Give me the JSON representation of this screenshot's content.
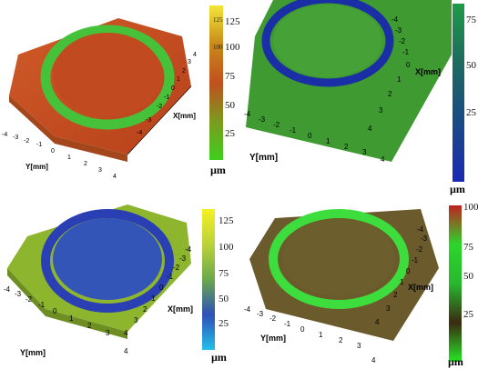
{
  "axes": {
    "x_label": "X[mm]",
    "y_label": "Y[mm]",
    "ticks": [
      "-4",
      "-3",
      "-2",
      "-1",
      "0",
      "1",
      "2",
      "3",
      "4"
    ],
    "tl_x_ticks": [
      "4",
      "3",
      "2",
      "1",
      "0",
      "-1",
      "-2",
      "-3",
      "-4"
    ]
  },
  "panels": [
    {
      "colorbar": {
        "ticks": [
          "125",
          "100",
          "75",
          "50",
          "25"
        ],
        "minor": [
          "125",
          "100"
        ],
        "unit": "µm",
        "colors": [
          "#f2e63a",
          "#c98a1a",
          "#c0501e",
          "#7c9a1f",
          "#3fcf1d"
        ]
      }
    },
    {
      "colorbar": {
        "ticks": [
          "75",
          "50",
          "25"
        ],
        "unit": "µm",
        "colors": [
          "#1f9a47",
          "#1d6a60",
          "#1a4a86",
          "#1a2ab5"
        ]
      }
    },
    {
      "colorbar": {
        "ticks": [
          "125",
          "100",
          "75",
          "50",
          "25"
        ],
        "unit": "µm",
        "colors": [
          "#f5f021",
          "#bcd23a",
          "#6aa84b",
          "#2f50b8",
          "#22c0e8"
        ]
      }
    },
    {
      "colorbar": {
        "ticks": [
          "100",
          "75",
          "50",
          "25"
        ],
        "unit": "µm",
        "colors": [
          "#c02020",
          "#2bd62b",
          "#28b82e",
          "#3a2a12",
          "#26e626"
        ]
      }
    }
  ]
}
